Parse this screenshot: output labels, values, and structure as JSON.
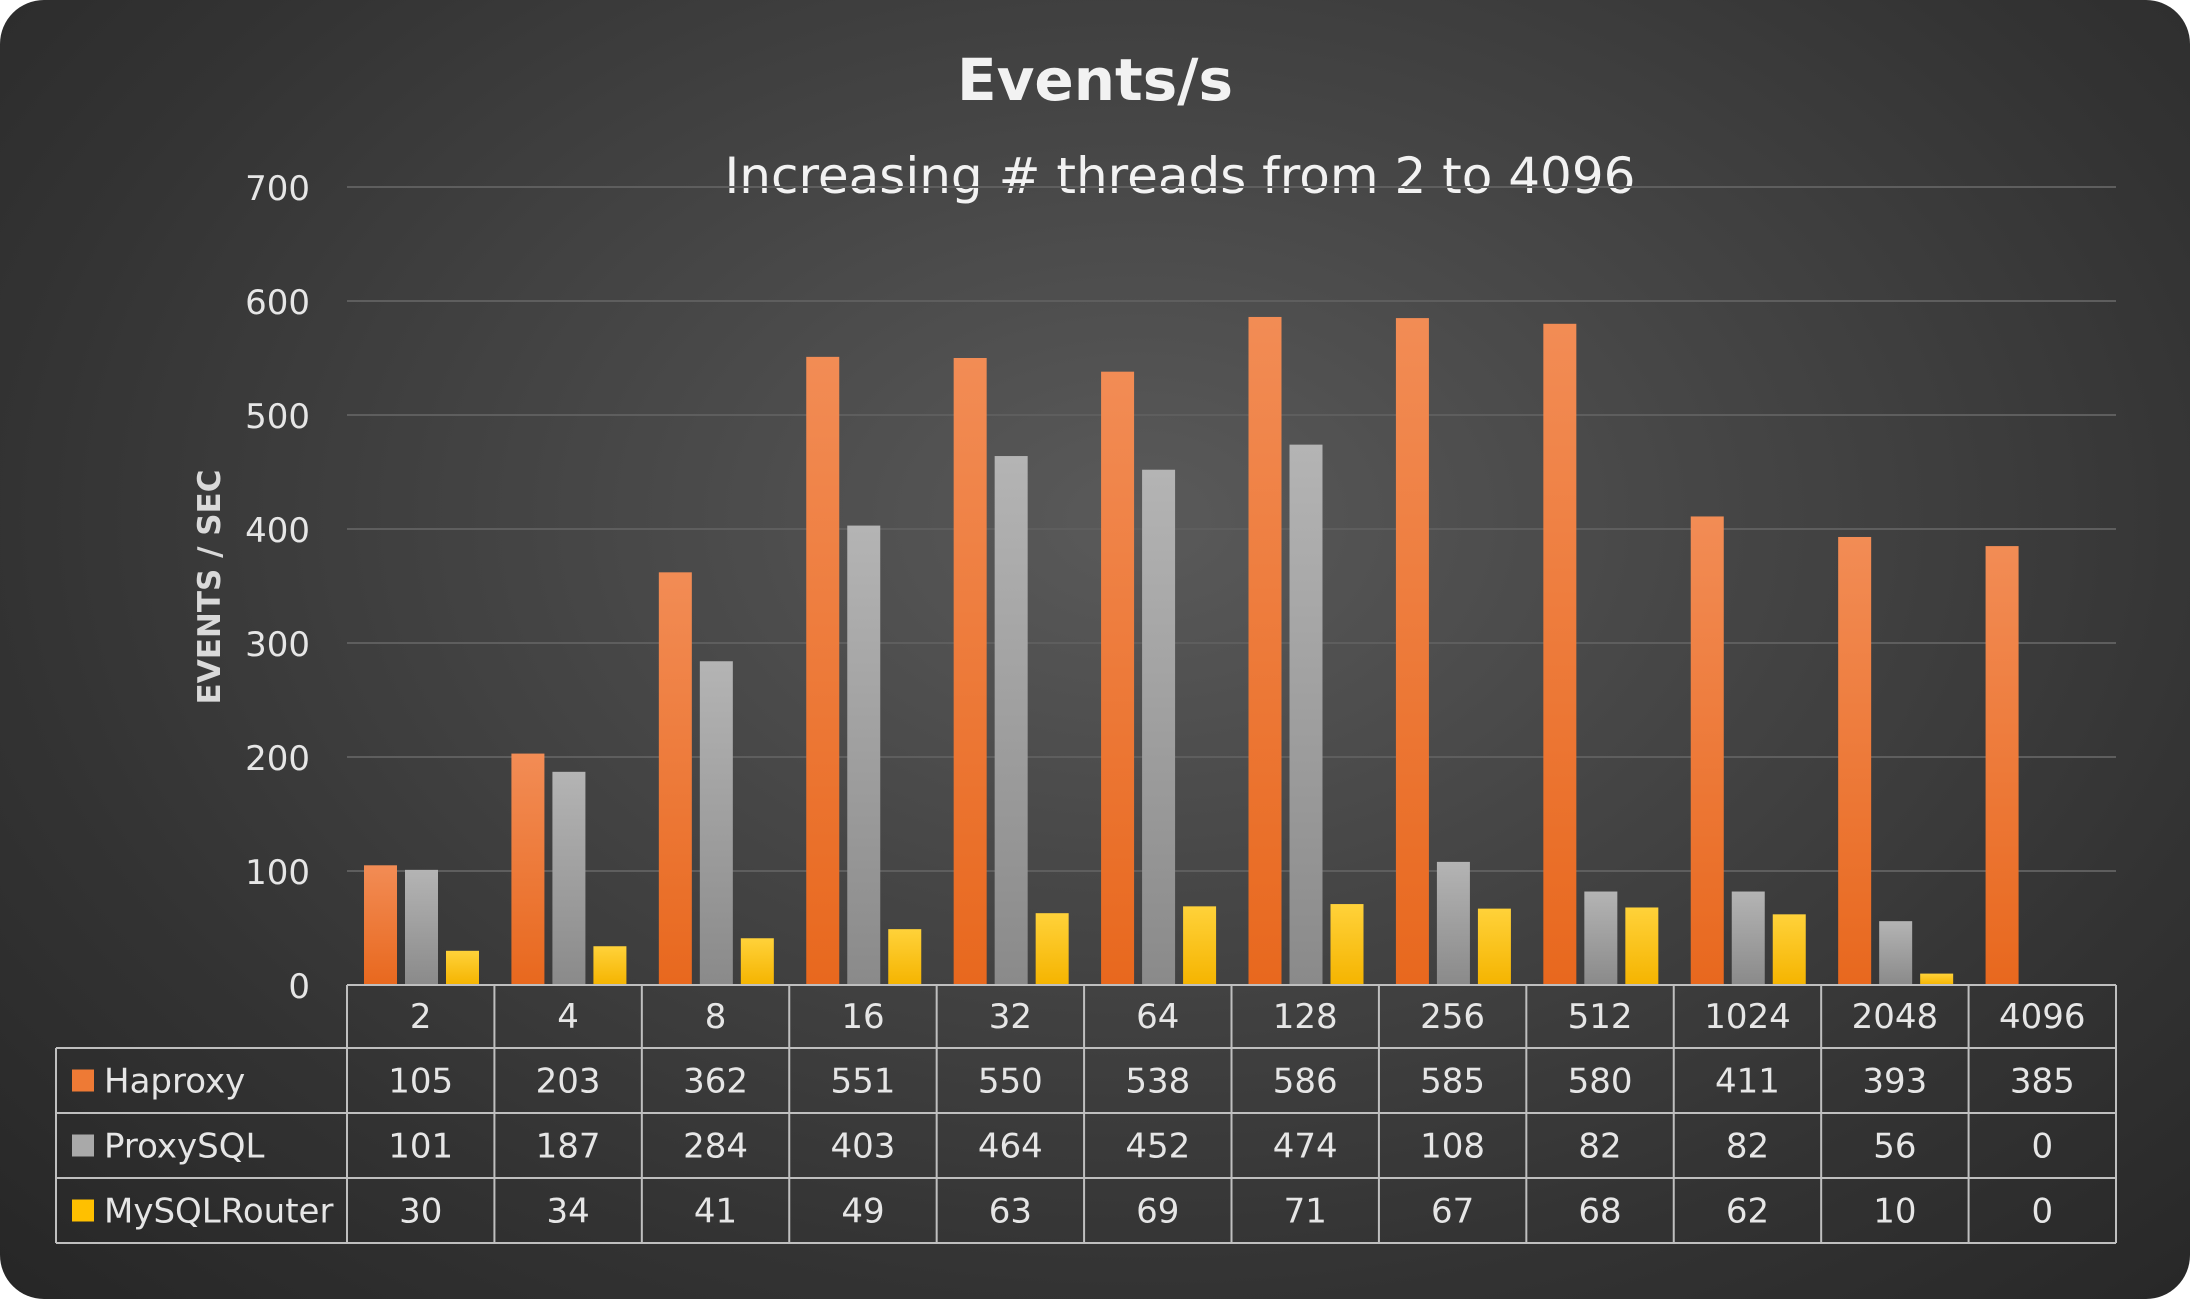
{
  "chart_data": {
    "type": "bar",
    "title": "Events/s",
    "subtitle": "Increasing # threads from 2 to 4096",
    "ylabel": "EVENTS / SEC",
    "xlabel": "",
    "ylim": [
      0,
      700
    ],
    "yticks": [
      0,
      100,
      200,
      300,
      400,
      500,
      600,
      700
    ],
    "grid": true,
    "legend": "data-table",
    "categories": [
      "2",
      "4",
      "8",
      "16",
      "32",
      "64",
      "128",
      "256",
      "512",
      "1024",
      "2048",
      "4096"
    ],
    "series": [
      {
        "name": "Haproxy",
        "color": "#ee7a35",
        "values": [
          105,
          203,
          362,
          551,
          550,
          538,
          586,
          585,
          580,
          411,
          393,
          385
        ]
      },
      {
        "name": "ProxySQL",
        "color": "#a9a9a9",
        "values": [
          101,
          187,
          284,
          403,
          464,
          452,
          474,
          108,
          82,
          82,
          56,
          0
        ]
      },
      {
        "name": "MySQLRouter",
        "color": "#ffc000",
        "values": [
          30,
          34,
          41,
          49,
          63,
          69,
          71,
          67,
          68,
          62,
          10,
          0
        ]
      }
    ]
  }
}
